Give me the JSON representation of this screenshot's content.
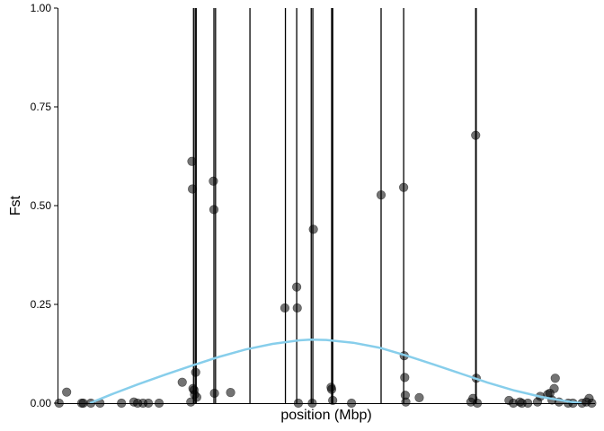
{
  "chart_data": {
    "type": "scatter",
    "title": "",
    "xlabel": "position (Mbp)",
    "ylabel": "Fst",
    "xlim": [
      0,
      100
    ],
    "ylim": [
      0,
      1
    ],
    "y_ticks": [
      {
        "value": 0,
        "label": "0.00"
      },
      {
        "value": 0.25,
        "label": "0.25"
      },
      {
        "value": 0.5,
        "label": "0.50"
      },
      {
        "value": 0.75,
        "label": "0.75"
      },
      {
        "value": 1,
        "label": "1.00"
      }
    ],
    "x_tick_labels_shown": false,
    "grid": false,
    "legend": "none",
    "point_color": "#000000",
    "point_opacity": 0.55,
    "smooth_color": "#87CEEB",
    "vline_color": "#000000",
    "vlines": [
      25.3,
      25.6,
      25.8,
      29.1,
      29.4,
      35.8,
      42.4,
      44.5,
      47.2,
      47.5,
      51.0,
      51.2,
      60.2,
      64.4,
      77.8,
      77.9
    ],
    "points": [
      {
        "x": 0.3,
        "y": 0.0
      },
      {
        "x": 1.7,
        "y": 0.028
      },
      {
        "x": 4.5,
        "y": 0.0
      },
      {
        "x": 4.8,
        "y": 0.0
      },
      {
        "x": 6.2,
        "y": 0.0
      },
      {
        "x": 7.9,
        "y": 0.0
      },
      {
        "x": 11.9,
        "y": 0.0
      },
      {
        "x": 14.2,
        "y": 0.003
      },
      {
        "x": 14.9,
        "y": 0.0
      },
      {
        "x": 15.9,
        "y": 0.0
      },
      {
        "x": 16.9,
        "y": 0.0
      },
      {
        "x": 18.9,
        "y": 0.0
      },
      {
        "x": 23.2,
        "y": 0.053
      },
      {
        "x": 24.8,
        "y": 0.003
      },
      {
        "x": 25.0,
        "y": 0.612
      },
      {
        "x": 25.1,
        "y": 0.542
      },
      {
        "x": 25.2,
        "y": 0.037
      },
      {
        "x": 25.4,
        "y": 0.033
      },
      {
        "x": 25.5,
        "y": 0.022
      },
      {
        "x": 25.7,
        "y": 0.078
      },
      {
        "x": 25.9,
        "y": 0.015
      },
      {
        "x": 29.0,
        "y": 0.562
      },
      {
        "x": 29.1,
        "y": 0.49
      },
      {
        "x": 29.2,
        "y": 0.025
      },
      {
        "x": 32.2,
        "y": 0.027
      },
      {
        "x": 42.3,
        "y": 0.241
      },
      {
        "x": 44.5,
        "y": 0.294
      },
      {
        "x": 44.6,
        "y": 0.241
      },
      {
        "x": 44.8,
        "y": 0.0
      },
      {
        "x": 47.4,
        "y": 0.0
      },
      {
        "x": 47.6,
        "y": 0.44
      },
      {
        "x": 50.9,
        "y": 0.04
      },
      {
        "x": 51.0,
        "y": 0.035
      },
      {
        "x": 51.2,
        "y": 0.007
      },
      {
        "x": 54.7,
        "y": 0.0
      },
      {
        "x": 60.2,
        "y": 0.527
      },
      {
        "x": 64.4,
        "y": 0.546
      },
      {
        "x": 64.5,
        "y": 0.12
      },
      {
        "x": 64.6,
        "y": 0.065
      },
      {
        "x": 64.7,
        "y": 0.02
      },
      {
        "x": 64.8,
        "y": 0.003
      },
      {
        "x": 67.3,
        "y": 0.014
      },
      {
        "x": 76.9,
        "y": 0.003
      },
      {
        "x": 77.3,
        "y": 0.012
      },
      {
        "x": 77.8,
        "y": 0.678
      },
      {
        "x": 77.9,
        "y": 0.063
      },
      {
        "x": 78.1,
        "y": 0.0
      },
      {
        "x": 84.0,
        "y": 0.007
      },
      {
        "x": 84.8,
        "y": 0.0
      },
      {
        "x": 86.0,
        "y": 0.003
      },
      {
        "x": 86.4,
        "y": 0.0
      },
      {
        "x": 87.5,
        "y": 0.0
      },
      {
        "x": 89.3,
        "y": 0.003
      },
      {
        "x": 89.8,
        "y": 0.017
      },
      {
        "x": 91.2,
        "y": 0.022
      },
      {
        "x": 91.6,
        "y": 0.025
      },
      {
        "x": 92.0,
        "y": 0.008
      },
      {
        "x": 92.4,
        "y": 0.037
      },
      {
        "x": 92.6,
        "y": 0.063
      },
      {
        "x": 93.3,
        "y": 0.003
      },
      {
        "x": 95.0,
        "y": 0.0
      },
      {
        "x": 95.9,
        "y": 0.0
      },
      {
        "x": 97.6,
        "y": 0.0
      },
      {
        "x": 98.4,
        "y": 0.003
      },
      {
        "x": 98.9,
        "y": 0.012
      },
      {
        "x": 99.4,
        "y": 0.0
      }
    ],
    "smooth_curve": {
      "x": [
        6.0,
        10,
        15,
        20,
        25,
        30,
        35,
        40,
        45,
        47,
        50,
        55,
        60,
        65,
        70,
        75,
        80,
        85,
        90,
        95,
        97.5
      ],
      "y": [
        0.0,
        0.022,
        0.048,
        0.072,
        0.095,
        0.117,
        0.136,
        0.15,
        0.159,
        0.161,
        0.16,
        0.153,
        0.14,
        0.12,
        0.098,
        0.075,
        0.052,
        0.032,
        0.016,
        0.004,
        0.0
      ]
    }
  }
}
